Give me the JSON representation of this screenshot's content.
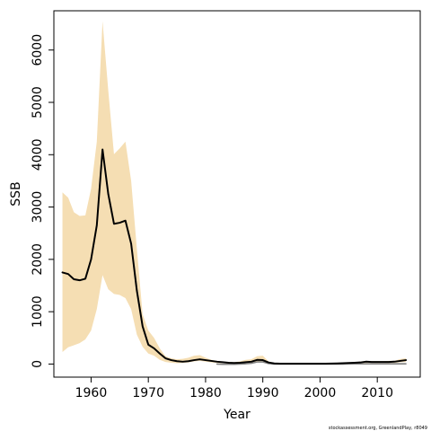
{
  "chart_data": {
    "type": "line",
    "title": "",
    "xlabel": "Year",
    "ylabel": "SSB",
    "xlim": [
      1953.5,
      2017.5
    ],
    "ylim": [
      -250,
      6750
    ],
    "xticks": [
      1960,
      1970,
      1980,
      1990,
      2000,
      2010
    ],
    "yticks": [
      0,
      1000,
      2000,
      3000,
      4000,
      5000,
      6000
    ],
    "grid": false,
    "legend": "none",
    "colors": {
      "band": "#f5deb3",
      "main": "#000000",
      "secondary": "#808080",
      "frame": "#000000"
    },
    "confidence_band": {
      "x": [
        1955,
        1956,
        1957,
        1958,
        1959,
        1960,
        1961,
        1962,
        1963,
        1964,
        1965,
        1966,
        1967,
        1968,
        1969,
        1970,
        1971,
        1972,
        1973,
        1974,
        1975,
        1976,
        1977,
        1978,
        1979,
        1980,
        1981,
        1982,
        1983,
        1984,
        1985,
        1986,
        1987,
        1988,
        1989,
        1990,
        1991,
        1992,
        1993,
        1994,
        1995,
        1996,
        1997,
        1998,
        1999,
        2000,
        2001,
        2002,
        2003,
        2004,
        2005,
        2006,
        2007,
        2008,
        2009,
        2010,
        2011,
        2012,
        2013,
        2014,
        2015
      ],
      "upper": [
        3280,
        3180,
        2900,
        2830,
        2840,
        3350,
        4250,
        6550,
        5230,
        4010,
        4120,
        4250,
        3500,
        2200,
        950,
        640,
        500,
        300,
        150,
        110,
        90,
        100,
        120,
        160,
        170,
        120,
        80,
        60,
        45,
        40,
        35,
        50,
        80,
        90,
        150,
        160,
        50,
        20,
        10,
        10,
        10,
        10,
        10,
        10,
        10,
        10,
        10,
        15,
        20,
        25,
        30,
        35,
        45,
        60,
        55,
        55,
        55,
        60,
        60,
        95,
        110
      ],
      "lower": [
        230,
        320,
        360,
        400,
        470,
        640,
        1050,
        1700,
        1430,
        1340,
        1320,
        1260,
        1050,
        560,
        330,
        200,
        160,
        80,
        40,
        25,
        15,
        20,
        30,
        50,
        60,
        45,
        30,
        20,
        15,
        10,
        10,
        15,
        20,
        25,
        40,
        40,
        15,
        5,
        2,
        2,
        2,
        2,
        2,
        2,
        2,
        2,
        2,
        3,
        4,
        6,
        8,
        10,
        12,
        20,
        20,
        20,
        20,
        20,
        20,
        35,
        40
      ]
    },
    "series": [
      {
        "x": [
          1955,
          1956,
          1957,
          1958,
          1959,
          1960,
          1961,
          1962,
          1963,
          1964,
          1965,
          1966,
          1967,
          1968,
          1969,
          1970,
          1971,
          1972,
          1973,
          1974,
          1975,
          1976,
          1977,
          1978,
          1979,
          1980,
          1981,
          1982,
          1983,
          1984,
          1985,
          1986,
          1987,
          1988,
          1989,
          1990,
          1991,
          1992,
          1993,
          1994,
          1995,
          1996,
          1997,
          1998,
          1999,
          2000,
          2001,
          2002,
          2003,
          2004,
          2005,
          2006,
          2007,
          2008,
          2009,
          2010,
          2011,
          2012,
          2013,
          2014,
          2015
        ],
        "values": [
          1750,
          1720,
          1620,
          1600,
          1630,
          2000,
          2650,
          4100,
          3250,
          2680,
          2700,
          2740,
          2300,
          1400,
          720,
          370,
          300,
          200,
          110,
          75,
          55,
          45,
          55,
          75,
          90,
          75,
          60,
          45,
          35,
          25,
          20,
          25,
          35,
          45,
          80,
          75,
          30,
          12,
          8,
          8,
          8,
          8,
          8,
          8,
          8,
          8,
          8,
          10,
          12,
          15,
          20,
          25,
          30,
          45,
          40,
          40,
          40,
          40,
          45,
          60,
          75
        ],
        "color": "#000000"
      },
      {
        "x": [
          1982,
          1983,
          1984,
          1985,
          1986,
          1987,
          1988,
          1989,
          1990,
          1991,
          1992,
          1993,
          1994,
          1995,
          1996,
          1997,
          1998,
          1999,
          2000,
          2001,
          2002,
          2003,
          2004,
          2005,
          2006,
          2007,
          2008,
          2009,
          2010,
          2011,
          2012,
          2013,
          2014,
          2015
        ],
        "values": [
          0,
          -5,
          -5,
          -5,
          0,
          5,
          15,
          40,
          40,
          10,
          0,
          0,
          0,
          0,
          0,
          0,
          0,
          0,
          0,
          0,
          0,
          0,
          0,
          5,
          5,
          5,
          5,
          5,
          5,
          5,
          5,
          5,
          5,
          5
        ],
        "color": "#808080"
      }
    ],
    "credit": "stockassessment.org, GreenlandPlay, r8049"
  }
}
